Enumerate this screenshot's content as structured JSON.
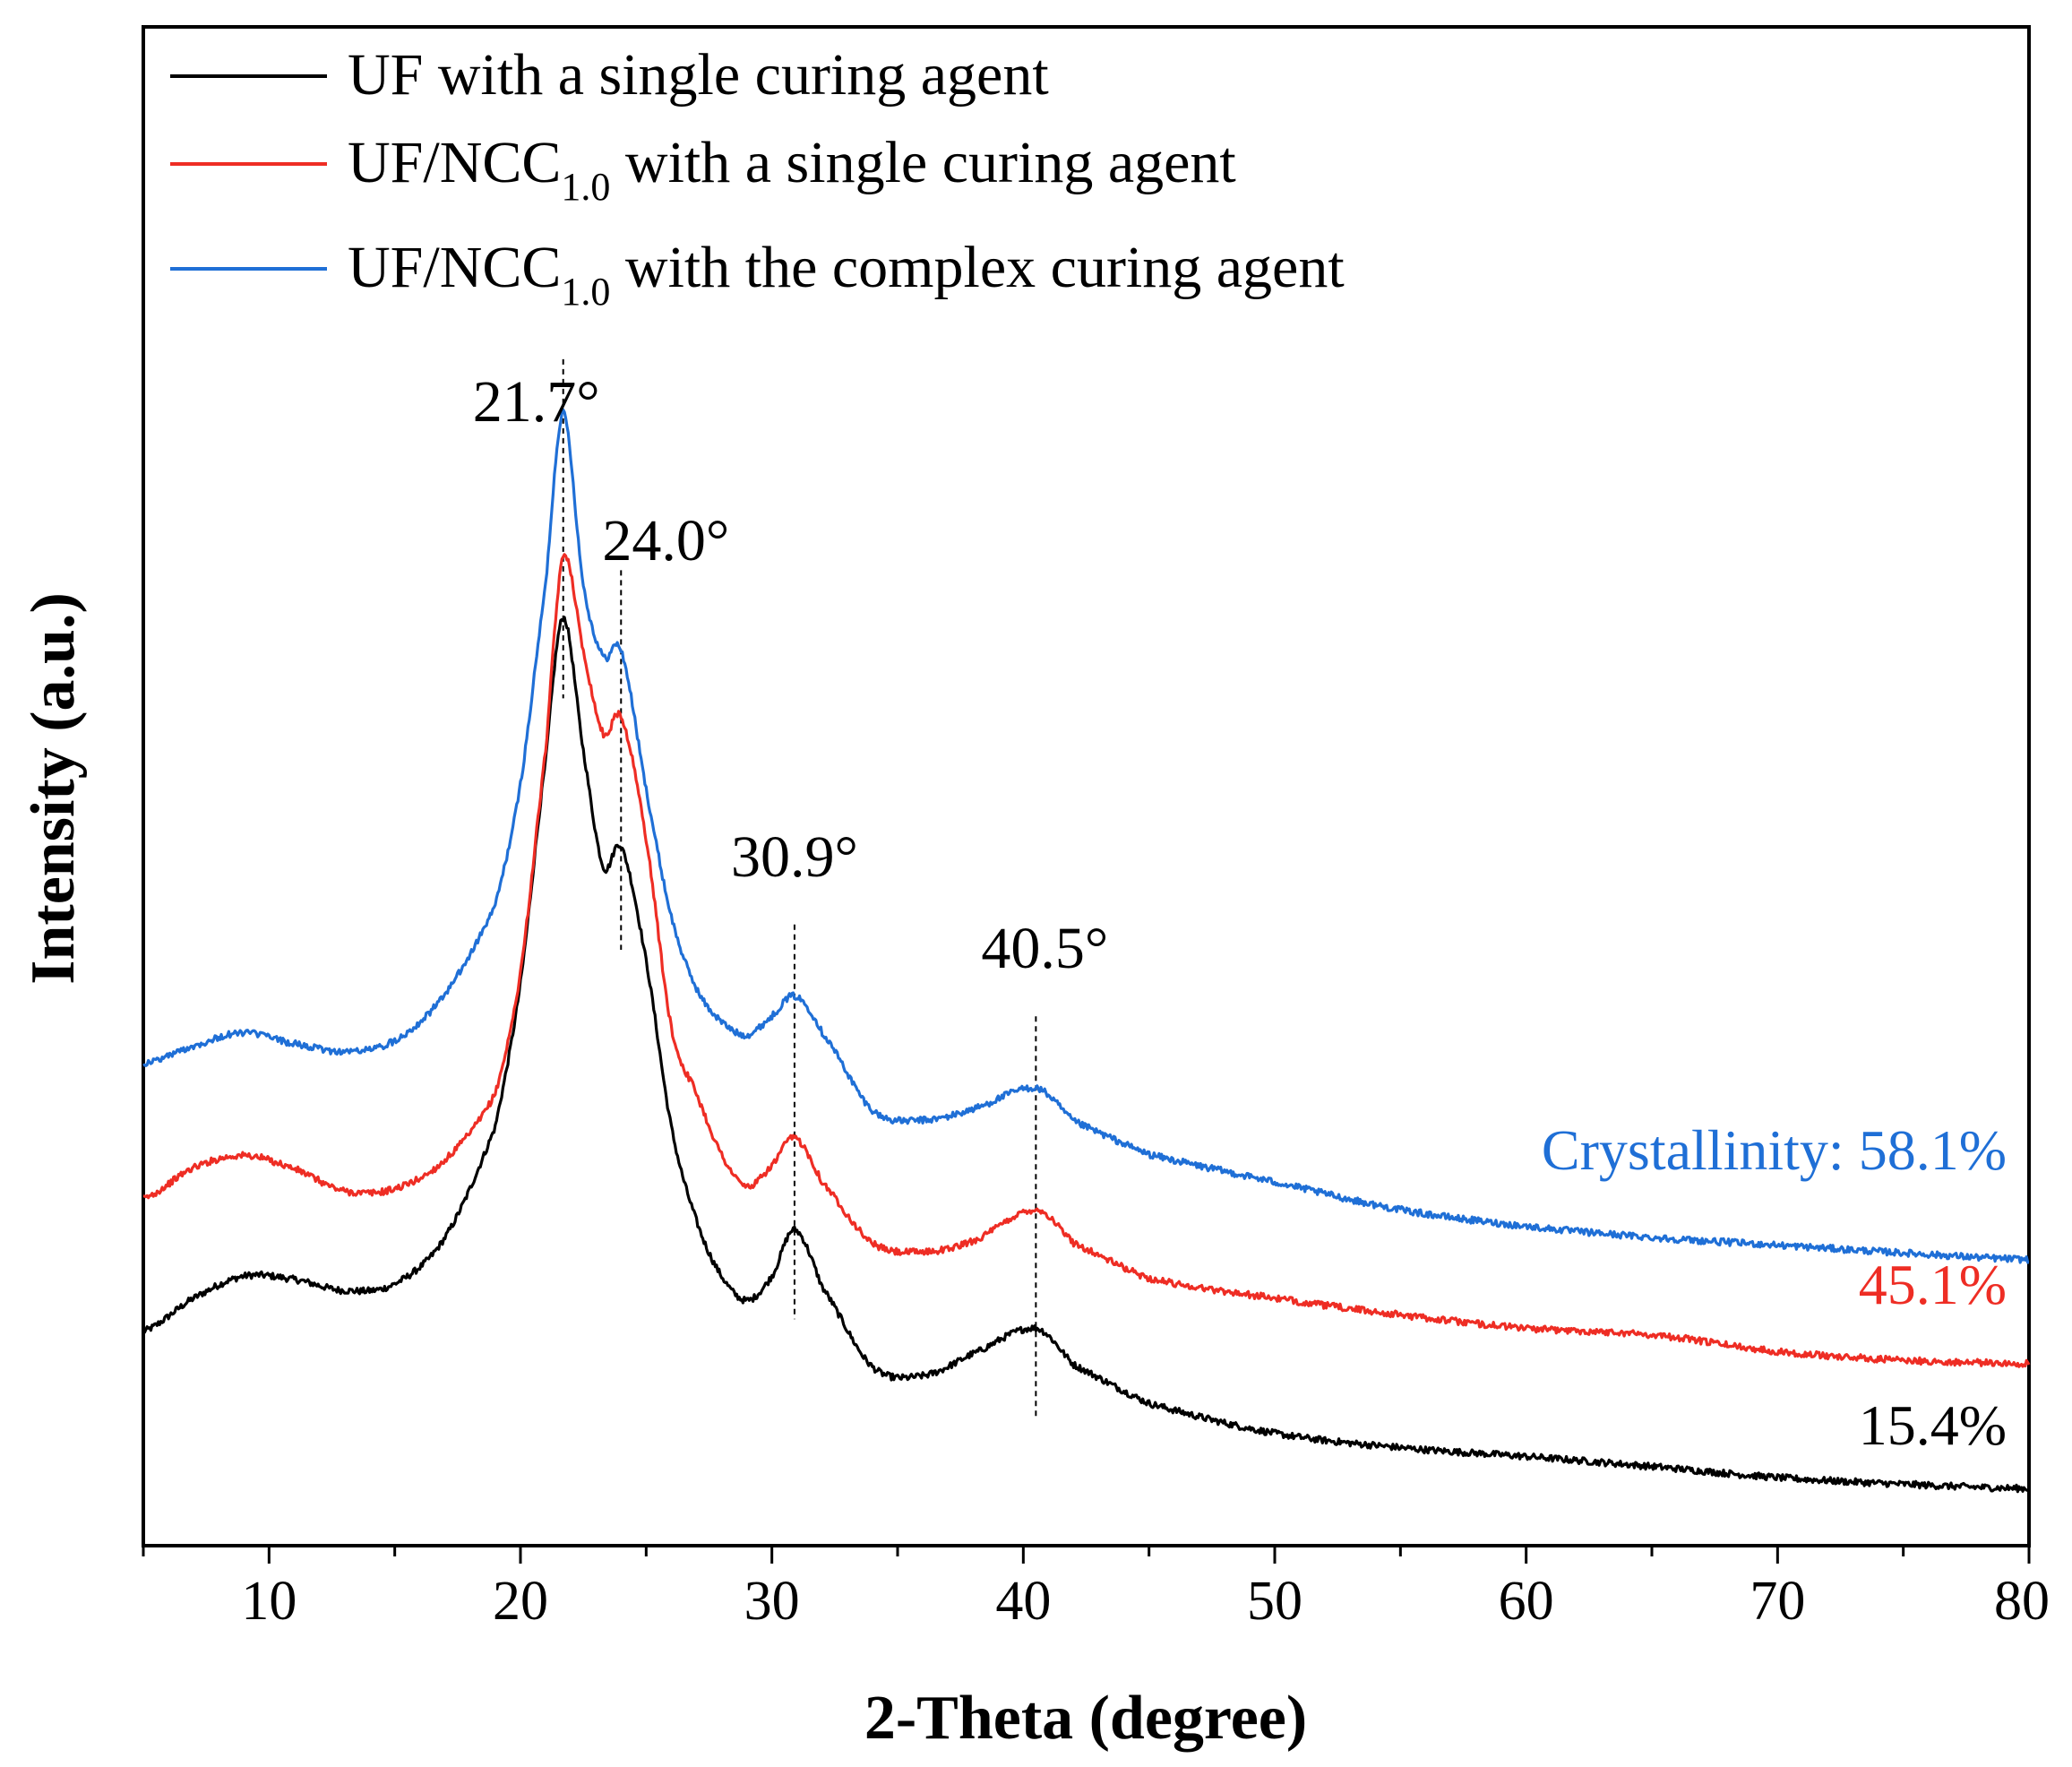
{
  "chart_data": {
    "type": "line",
    "xlabel": "2-Theta (degree)",
    "ylabel": "Intensity (a.u.)",
    "xlim": [
      5,
      80
    ],
    "ylim": [
      0,
      100
    ],
    "x_ticks": [
      10,
      20,
      30,
      40,
      50,
      60,
      70,
      80
    ],
    "legend_position": "top-left",
    "series": [
      {
        "name": "UF with a single curing agent",
        "legend_main": "UF with a single curing agent",
        "legend_sub": "",
        "legend_tail": "",
        "color": "#000000",
        "crystallinity_label": "15.4%",
        "x": [
          5,
          7,
          9,
          11,
          13,
          15,
          17,
          19,
          20,
          21,
          21.7,
          22.5,
          23.3,
          24.0,
          25,
          26,
          27,
          28,
          29,
          30,
          30.9,
          32,
          34,
          36,
          38,
          40.5,
          42,
          45,
          50,
          55,
          60,
          65,
          70,
          75,
          80
        ],
        "values": [
          14.5,
          17.5,
          19.5,
          19.2,
          18.2,
          18.8,
          23,
          33,
          46,
          66,
          79,
          67,
          56.5,
          58.3,
          48,
          33,
          24.5,
          19.5,
          17.3,
          19.5,
          23.7,
          18.5,
          11.3,
          10.5,
          12.5,
          14.8,
          11.5,
          8,
          5.3,
          4,
          3.2,
          2.3,
          1.3,
          0.7,
          0.3
        ]
      },
      {
        "name": "UF/NCC1.0 with a single curing agent",
        "legend_main": "UF/NCC",
        "legend_sub": "1.0",
        "legend_tail": " with a single curing agent",
        "color": "#ee2d24",
        "crystallinity_label": "45.1%",
        "x": [
          5,
          7,
          9,
          11,
          13,
          15,
          17,
          19,
          20,
          21,
          21.7,
          22.5,
          23.3,
          24.0,
          25,
          26,
          27,
          28,
          29,
          30,
          30.9,
          32,
          34,
          36,
          38,
          40.5,
          42,
          45,
          50,
          55,
          60,
          65,
          70,
          75,
          80
        ],
        "values": [
          26.5,
          29.3,
          30.4,
          29.2,
          27.2,
          27.4,
          30,
          36,
          47,
          67,
          84.5,
          76,
          68.5,
          70,
          59,
          42,
          36,
          30.5,
          27.6,
          29.5,
          32,
          28,
          22.5,
          21.7,
          22.7,
          25.5,
          22.5,
          19.3,
          17.5,
          16,
          14.8,
          14.2,
          12.7,
          11.9,
          11.6
        ]
      },
      {
        "name": "UF/NCC1.0 with the complex curing agent",
        "legend_main": "UF/NCC",
        "legend_sub": "1.0",
        "legend_tail": " with the complex curing agent",
        "color": "#1f6fd6",
        "crystallinity_label": "58.1%",
        "crystallinity_prefix": "Crystallinity: ",
        "x": [
          5,
          7,
          9,
          11,
          13,
          15,
          17,
          19,
          20,
          21,
          21.7,
          22.5,
          23.3,
          24.0,
          25,
          26,
          27,
          28,
          29,
          30,
          30.9,
          32,
          34,
          36,
          38,
          40.5,
          42,
          45,
          50,
          55,
          60,
          65,
          70,
          75,
          80
        ],
        "values": [
          38.7,
          40.3,
          41.5,
          40.5,
          39.8,
          40.8,
          45,
          53,
          64,
          82,
          97.5,
          82,
          75.5,
          76,
          63.5,
          52,
          45.5,
          42.5,
          41.3,
          43,
          44.8,
          41.5,
          34.5,
          33.6,
          34.6,
          36.5,
          33.5,
          30.5,
          28,
          25.5,
          24,
          23,
          22.3,
          21.6,
          21
        ]
      }
    ],
    "peaks": [
      {
        "x": 21.7,
        "label": "21.7°"
      },
      {
        "x": 24.0,
        "label": "24.0°"
      },
      {
        "x": 30.9,
        "label": "30.9°"
      },
      {
        "x": 40.5,
        "label": "40.5°"
      }
    ]
  }
}
